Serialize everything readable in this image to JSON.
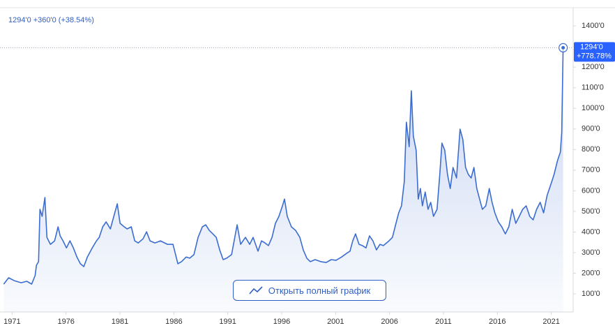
{
  "chart_data": {
    "type": "area",
    "header": "1294'0 +360'0 (+38.54%)",
    "last_price_label": [
      "1294'0",
      "+778.78%"
    ],
    "button": "Открыть полный график",
    "color": "#3b6ccf",
    "xlim": [
      1970.2,
      2022.9
    ],
    "ylim": [
      12,
      1485
    ],
    "xticks": [
      1971,
      1976,
      1981,
      1986,
      1991,
      1996,
      2001,
      2006,
      2011,
      2016,
      2021
    ],
    "yticks": [
      {
        "value": 100,
        "label": "100'0"
      },
      {
        "value": 200,
        "label": "200'0"
      },
      {
        "value": 300,
        "label": "300'0"
      },
      {
        "value": 400,
        "label": "400'0"
      },
      {
        "value": 500,
        "label": "500'0"
      },
      {
        "value": 600,
        "label": "600'0"
      },
      {
        "value": 700,
        "label": "700'0"
      },
      {
        "value": 800,
        "label": "800'0"
      },
      {
        "value": 900,
        "label": "900'0"
      },
      {
        "value": 1000,
        "label": "1000'0"
      },
      {
        "value": 1100,
        "label": "1100'0"
      },
      {
        "value": 1200,
        "label": "1200'0"
      },
      {
        "value": 1400,
        "label": "1400'0"
      }
    ],
    "x": [
      1970.22,
      1970.68,
      1971.19,
      1971.84,
      1972.36,
      1972.81,
      1973.13,
      1973.26,
      1973.45,
      1973.58,
      1973.78,
      1974.04,
      1974.23,
      1974.55,
      1974.94,
      1975.26,
      1975.46,
      1975.72,
      1976.04,
      1976.36,
      1976.68,
      1977.01,
      1977.33,
      1977.65,
      1977.98,
      1978.43,
      1978.82,
      1979.08,
      1979.4,
      1979.72,
      1980.11,
      1980.43,
      1980.75,
      1981.01,
      1981.4,
      1981.66,
      1982.05,
      1982.37,
      1982.69,
      1983.14,
      1983.47,
      1983.79,
      1984.24,
      1984.76,
      1985.41,
      1985.92,
      1986.37,
      1986.7,
      1987.15,
      1987.47,
      1987.86,
      1988.25,
      1988.64,
      1988.96,
      1989.28,
      1989.61,
      1989.93,
      1990.25,
      1990.57,
      1990.9,
      1991.35,
      1991.87,
      1992.19,
      1992.64,
      1993.03,
      1993.35,
      1993.8,
      1994.13,
      1994.45,
      1994.77,
      1995.1,
      1995.42,
      1995.74,
      1996.07,
      1996.26,
      1996.52,
      1996.9,
      1997.29,
      1997.68,
      1998.0,
      1998.33,
      1998.65,
      1999.1,
      1999.62,
      2000.13,
      2000.59,
      2001.04,
      2001.56,
      2002.01,
      2002.33,
      2002.59,
      2002.85,
      2003.17,
      2003.49,
      2003.82,
      2004.14,
      2004.46,
      2004.79,
      2005.11,
      2005.43,
      2005.95,
      2006.27,
      2006.6,
      2006.85,
      2007.11,
      2007.37,
      2007.56,
      2007.82,
      2008.02,
      2008.21,
      2008.47,
      2008.66,
      2008.86,
      2009.05,
      2009.31,
      2009.57,
      2009.82,
      2010.08,
      2010.41,
      2010.66,
      2010.86,
      2011.12,
      2011.38,
      2011.63,
      2011.89,
      2012.21,
      2012.54,
      2012.8,
      2013.05,
      2013.31,
      2013.57,
      2013.83,
      2014.09,
      2014.35,
      2014.61,
      2014.93,
      2015.25,
      2015.51,
      2015.77,
      2016.09,
      2016.41,
      2016.74,
      2017.06,
      2017.38,
      2017.71,
      2018.03,
      2018.35,
      2018.67,
      2019.0,
      2019.32,
      2019.64,
      2019.97,
      2020.29,
      2020.61,
      2020.94,
      2021.26,
      2021.58,
      2021.84,
      2021.97,
      2022.1
    ],
    "values": [
      147,
      178,
      164,
      154,
      161,
      147,
      188,
      239,
      256,
      510,
      476,
      567,
      374,
      340,
      357,
      425,
      381,
      357,
      323,
      357,
      323,
      279,
      246,
      232,
      279,
      323,
      357,
      374,
      425,
      449,
      415,
      476,
      537,
      442,
      425,
      415,
      425,
      357,
      347,
      367,
      401,
      357,
      347,
      357,
      340,
      340,
      246,
      256,
      279,
      273,
      290,
      374,
      425,
      435,
      408,
      391,
      374,
      313,
      266,
      273,
      290,
      435,
      340,
      374,
      340,
      374,
      307,
      357,
      347,
      334,
      374,
      442,
      476,
      527,
      560,
      476,
      425,
      408,
      374,
      313,
      273,
      256,
      266,
      256,
      252,
      266,
      263,
      279,
      296,
      307,
      357,
      391,
      340,
      334,
      323,
      381,
      357,
      313,
      340,
      334,
      357,
      374,
      442,
      493,
      527,
      645,
      933,
      814,
      1085,
      865,
      797,
      560,
      611,
      527,
      594,
      510,
      544,
      476,
      510,
      679,
      831,
      797,
      679,
      611,
      713,
      662,
      899,
      848,
      713,
      679,
      662,
      713,
      611,
      560,
      510,
      527,
      611,
      544,
      493,
      449,
      425,
      391,
      425,
      510,
      442,
      476,
      510,
      527,
      476,
      459,
      510,
      544,
      493,
      577,
      628,
      679,
      747,
      787,
      882,
      1294
    ]
  }
}
